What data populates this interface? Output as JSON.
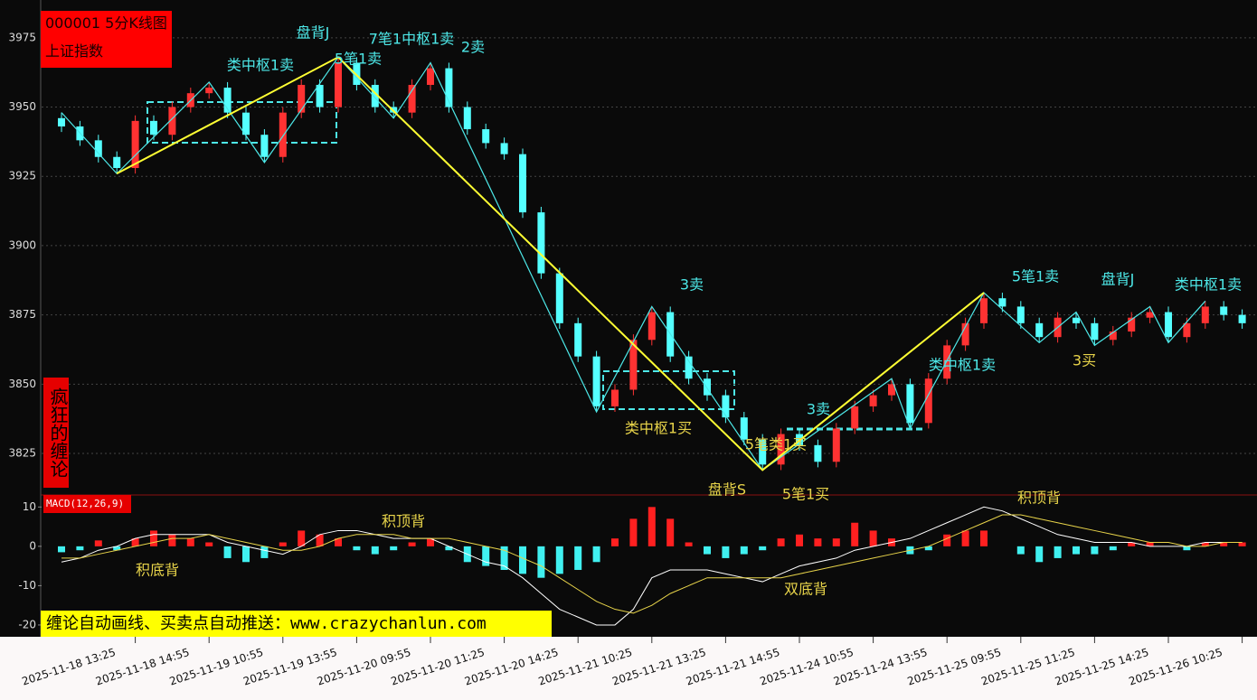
{
  "chart_data": [
    {
      "type": "candlestick",
      "title": "000001 5分K线图",
      "subtitle": "上证指数",
      "categories": [
        null,
        null,
        null,
        null,
        "2025-11-18 13:25",
        null,
        null,
        null,
        "2025-11-18 14:55",
        null,
        null,
        null,
        "2025-11-19 10:55",
        null,
        null,
        null,
        "2025-11-19 13:55",
        null,
        null,
        null,
        "2025-11-20 09:55",
        null,
        null,
        null,
        "2025-11-20 11:25",
        null,
        null,
        null,
        "2025-11-20 14:25",
        null,
        null,
        null,
        "2025-11-21 10:25",
        null,
        null,
        null,
        "2025-11-21 13:25",
        null,
        null,
        null,
        "2025-11-21 14:55",
        null,
        null,
        null,
        "2025-11-24 10:55",
        null,
        null,
        null,
        "2025-11-24 13:55",
        null,
        null,
        null,
        "2025-11-25 09:55",
        null,
        null,
        null,
        "2025-11-25 11:25",
        null,
        null,
        null,
        "2025-11-25 14:25",
        null,
        null,
        null,
        "2025-11-26 10:25"
      ],
      "open": [
        3946,
        3943,
        3938,
        3932,
        3928,
        3945,
        3940,
        3950,
        3955,
        3957,
        3948,
        3940,
        3932,
        3948,
        3958,
        3950,
        3966,
        3958,
        3950,
        3948,
        3958,
        3964,
        3950,
        3942,
        3937,
        3933,
        3912,
        3890,
        3872,
        3860,
        3842,
        3848,
        3866,
        3876,
        3860,
        3852,
        3846,
        3838,
        3830,
        3821,
        3832,
        3828,
        3822,
        3834,
        3842,
        3846,
        3850,
        3836,
        3852,
        3864,
        3872,
        3881,
        3878,
        3872,
        3867,
        3874,
        3872,
        3866,
        3869,
        3874,
        3876,
        3867,
        3872,
        3878,
        3875
      ],
      "high": [
        3948,
        3945,
        3940,
        3934,
        3947,
        3947,
        3952,
        3957,
        3959,
        3959,
        3950,
        3942,
        3950,
        3960,
        3960,
        3968,
        3968,
        3960,
        3952,
        3960,
        3966,
        3966,
        3952,
        3944,
        3939,
        3935,
        3914,
        3892,
        3874,
        3862,
        3850,
        3868,
        3878,
        3878,
        3862,
        3854,
        3848,
        3840,
        3832,
        3834,
        3834,
        3830,
        3836,
        3844,
        3848,
        3852,
        3852,
        3854,
        3866,
        3874,
        3883,
        3883,
        3880,
        3874,
        3876,
        3876,
        3874,
        3871,
        3876,
        3878,
        3878,
        3874,
        3880,
        3880,
        3877
      ],
      "low": [
        3941,
        3936,
        3930,
        3926,
        3926,
        3938,
        3938,
        3948,
        3953,
        3946,
        3938,
        3930,
        3930,
        3946,
        3948,
        3948,
        3956,
        3948,
        3946,
        3946,
        3956,
        3948,
        3940,
        3935,
        3931,
        3910,
        3888,
        3870,
        3858,
        3840,
        3840,
        3846,
        3864,
        3858,
        3850,
        3844,
        3836,
        3828,
        3819,
        3819,
        3826,
        3820,
        3820,
        3832,
        3840,
        3844,
        3834,
        3834,
        3850,
        3862,
        3870,
        3876,
        3870,
        3865,
        3865,
        3870,
        3864,
        3864,
        3867,
        3872,
        3865,
        3865,
        3870,
        3873,
        3870
      ],
      "close": [
        3943,
        3938,
        3932,
        3928,
        3945,
        3940,
        3950,
        3955,
        3957,
        3948,
        3940,
        3932,
        3948,
        3958,
        3950,
        3966,
        3958,
        3950,
        3948,
        3958,
        3964,
        3950,
        3942,
        3937,
        3933,
        3912,
        3890,
        3872,
        3860,
        3842,
        3848,
        3866,
        3876,
        3860,
        3852,
        3846,
        3838,
        3830,
        3821,
        3832,
        3828,
        3822,
        3834,
        3842,
        3846,
        3850,
        3836,
        3852,
        3864,
        3872,
        3881,
        3878,
        3872,
        3867,
        3874,
        3872,
        3866,
        3869,
        3874,
        3876,
        3867,
        3872,
        3878,
        3875,
        3872
      ],
      "up_color": "#ff3232",
      "down_color": "#54ffff",
      "segment_color": "#ffff33",
      "stroke_color": "#4de8e8",
      "ylim": [
        3811,
        3987
      ],
      "yticks": [
        3825,
        3850,
        3875,
        3900,
        3925,
        3950,
        3975
      ],
      "grid": true,
      "annotations": [
        {
          "text": "盘背J",
          "color": "#4de8e8"
        },
        {
          "text": "7笔1中枢1卖",
          "color": "#4de8e8"
        },
        {
          "text": "2卖",
          "color": "#4de8e8"
        },
        {
          "text": "类中枢1卖",
          "color": "#4de8e8"
        },
        {
          "text": "5笔1卖",
          "color": "#4de8e8"
        },
        {
          "text": "3卖",
          "color": "#4de8e8"
        },
        {
          "text": "类中枢1买",
          "color": "#e8d44a"
        },
        {
          "text": "5笔类1买",
          "color": "#e8d44a"
        },
        {
          "text": "盘背S",
          "color": "#e8d44a"
        },
        {
          "text": "5笔1买",
          "color": "#e8d44a"
        },
        {
          "text": "3卖",
          "color": "#4de8e8"
        },
        {
          "text": "5笔1卖",
          "color": "#4de8e8"
        },
        {
          "text": "盘背J",
          "color": "#4de8e8"
        },
        {
          "text": "类中枢1卖",
          "color": "#4de8e8"
        },
        {
          "text": "类中枢1卖",
          "color": "#4de8e8"
        },
        {
          "text": "3买",
          "color": "#e8d44a"
        }
      ]
    },
    {
      "type": "macd",
      "title": "MACD(12,26,9)",
      "series": [
        {
          "colors": [
            "#ff2020",
            "#40f0f0"
          ],
          "values": [
            -1.5,
            -1,
            1.5,
            -1,
            2,
            4,
            3,
            2,
            1,
            -3,
            -4,
            -3,
            1,
            4,
            3,
            2,
            -1,
            -2,
            -1,
            1,
            2,
            -1,
            -4,
            -5,
            -6,
            -7,
            -8,
            -7,
            -6,
            -4,
            2,
            7,
            10,
            7,
            1,
            -2,
            -3,
            -2,
            -1,
            2,
            3,
            2,
            2,
            6,
            4,
            2,
            -2,
            -1,
            3,
            4,
            4,
            0,
            -2,
            -4,
            -3,
            -2,
            -2,
            -1,
            1,
            1,
            0,
            -1,
            1,
            1,
            1
          ]
        },
        {
          "color": "#ffffff",
          "values": [
            -4,
            -3,
            -1,
            0,
            2,
            3,
            3,
            3,
            3,
            1,
            0,
            -1,
            -2,
            0,
            3,
            4,
            4,
            3,
            2,
            2,
            2,
            0,
            -2,
            -4,
            -5,
            -8,
            -12,
            -16,
            -18,
            -20,
            -20,
            -16,
            -8,
            -6,
            -6,
            -6,
            -7,
            -8,
            -9,
            -7,
            -5,
            -4,
            -3,
            -1,
            0,
            1,
            2,
            4,
            6,
            8,
            10,
            9,
            7,
            5,
            3,
            2,
            1,
            1,
            1,
            0,
            0,
            0,
            1,
            1,
            1
          ]
        },
        {
          "color": "#e8d44a",
          "values": [
            -3,
            -3,
            -2,
            -1,
            0,
            1,
            2,
            2,
            3,
            2,
            1,
            0,
            -1,
            -1,
            0,
            2,
            3,
            3,
            3,
            2,
            2,
            2,
            1,
            0,
            -1,
            -3,
            -5,
            -8,
            -11,
            -14,
            -16,
            -17,
            -15,
            -12,
            -10,
            -8,
            -8,
            -8,
            -8,
            -8,
            -7,
            -6,
            -5,
            -4,
            -3,
            -2,
            -1,
            0,
            2,
            4,
            6,
            8,
            8,
            7,
            6,
            5,
            4,
            3,
            2,
            1,
            1,
            0,
            0,
            1,
            1
          ]
        }
      ],
      "ylim": [
        -23,
        12.6
      ],
      "yticks": [
        -20,
        -10,
        0,
        10
      ],
      "annotations": [
        {
          "text": "积顶背",
          "color": "#e8d44a"
        },
        {
          "text": "积底背",
          "color": "#e8d44a"
        },
        {
          "text": "双底背",
          "color": "#e8d44a"
        },
        {
          "text": "积顶背",
          "color": "#e8d44a"
        }
      ]
    }
  ],
  "brand": "疯狂的缠论",
  "banner": "缠论自动画线、买卖点自动推送：www.crazychanlun.com"
}
